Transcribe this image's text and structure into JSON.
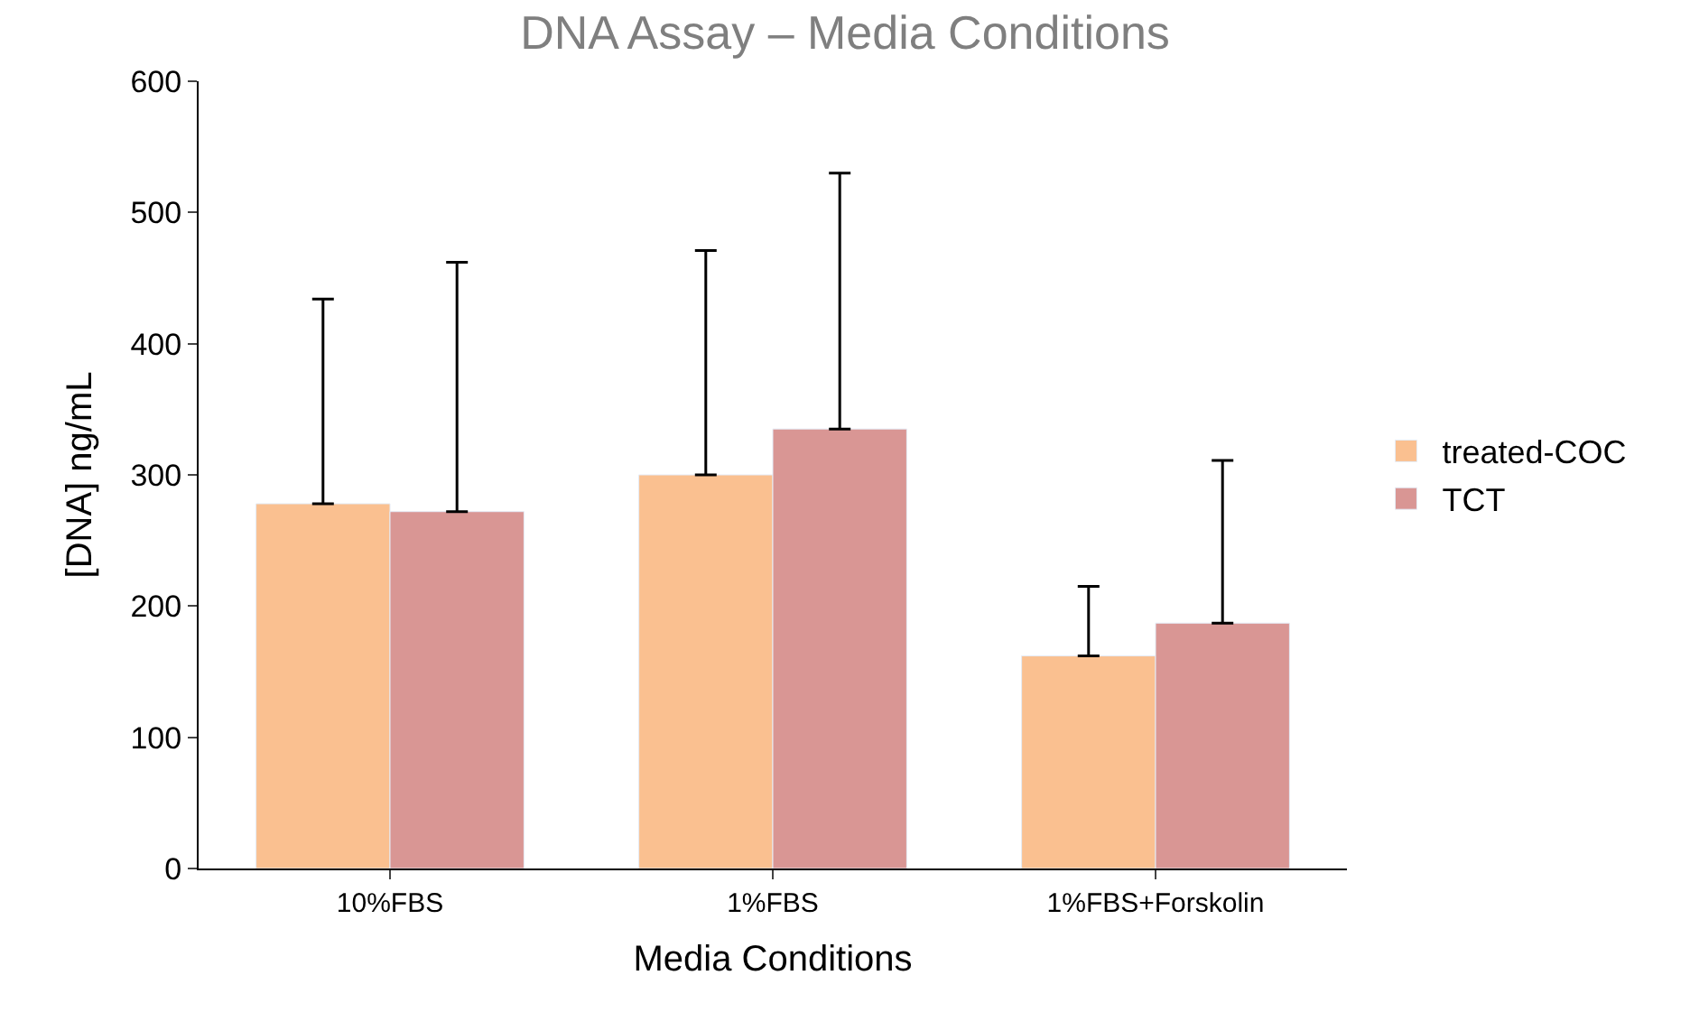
{
  "chart_data": {
    "type": "bar",
    "title": "DNA Assay – Media Conditions",
    "xlabel": "Media Conditions",
    "ylabel": "[DNA] ng/mL",
    "categories": [
      "10%FBS",
      "1%FBS",
      "1%FBS+Forskolin"
    ],
    "series": [
      {
        "name": "treated-COC",
        "color": "#fac090",
        "values": [
          278,
          300,
          162
        ],
        "errors": [
          [
            278,
            434
          ],
          [
            300,
            471
          ],
          [
            162,
            215
          ]
        ]
      },
      {
        "name": "TCT",
        "color": "#d99694",
        "values": [
          272,
          335,
          187
        ],
        "errors": [
          [
            272,
            462
          ],
          [
            335,
            530
          ],
          [
            187,
            311
          ]
        ]
      }
    ],
    "ylim": [
      0,
      600
    ],
    "yticks": [
      0,
      100,
      200,
      300,
      400,
      500,
      600
    ],
    "legend": "right"
  }
}
